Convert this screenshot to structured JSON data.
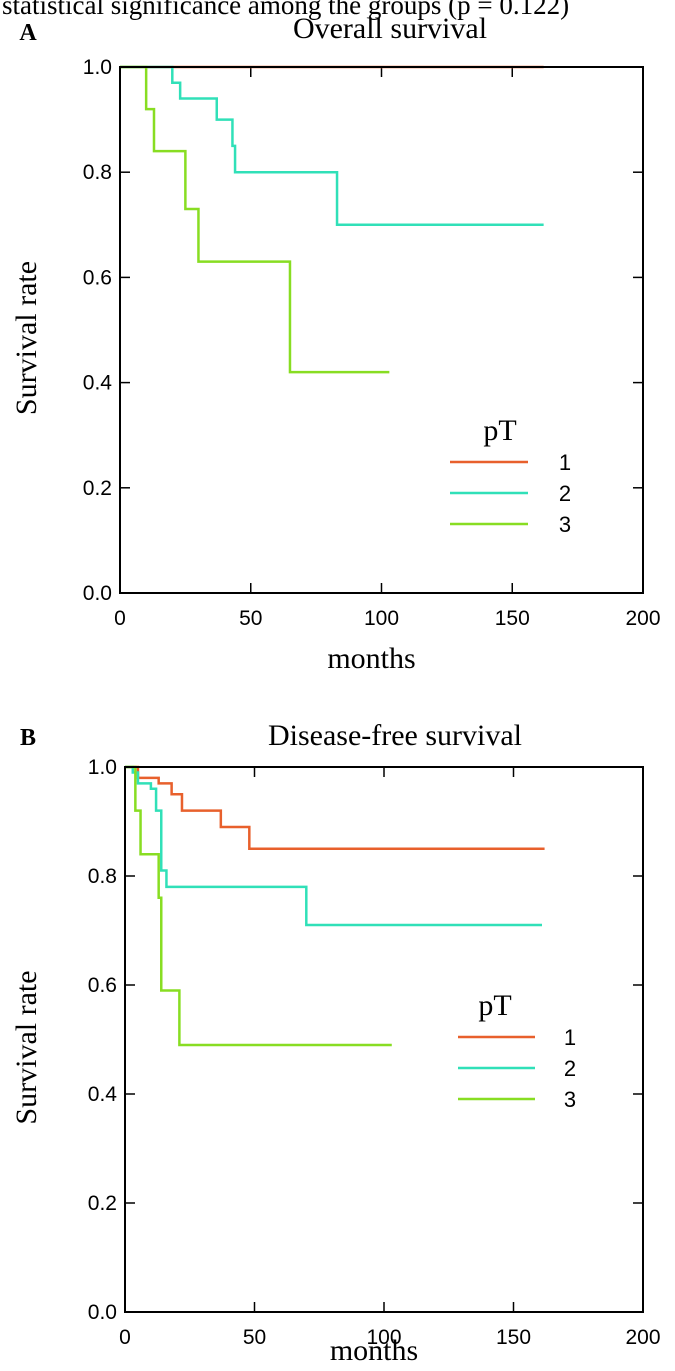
{
  "caption_top": "statistical significance among the groups (p = 0.122)",
  "chart_data": [
    {
      "type": "line",
      "panel_label": "A",
      "title": "Overall survival",
      "xlabel": "months",
      "ylabel": "Survival rate",
      "xlim": [
        0,
        200
      ],
      "ylim": [
        0,
        1
      ],
      "xticks": [
        "0",
        "50",
        "100",
        "150",
        "200"
      ],
      "yticks": [
        "0.0",
        "0.2",
        "0.4",
        "0.6",
        "0.8",
        "1.0"
      ],
      "legend_title": "pT",
      "legend_position": "bottom-right",
      "series": [
        {
          "name": "1",
          "color": "#e8602c",
          "x": [
            0,
            162
          ],
          "y": [
            1.0,
            1.0
          ]
        },
        {
          "name": "2",
          "color": "#30e0b8",
          "x": [
            0,
            20,
            23,
            27,
            37,
            42,
            43,
            44,
            83,
            162
          ],
          "y": [
            1.0,
            0.97,
            0.94,
            0.94,
            0.9,
            0.9,
            0.85,
            0.8,
            0.7,
            0.7
          ]
        },
        {
          "name": "3",
          "color": "#88dd22",
          "x": [
            0,
            10,
            13,
            25,
            30,
            65,
            103
          ],
          "y": [
            1.0,
            0.92,
            0.84,
            0.73,
            0.63,
            0.42,
            0.42
          ]
        }
      ]
    },
    {
      "type": "line",
      "panel_label": "B",
      "title": "Disease-free survival",
      "xlabel": "months",
      "ylabel": "Survival rate",
      "xlim": [
        0,
        200
      ],
      "ylim": [
        0,
        1
      ],
      "xticks": [
        "0",
        "50",
        "100",
        "150",
        "200"
      ],
      "yticks": [
        "0.0",
        "0.2",
        "0.4",
        "0.6",
        "0.8",
        "1.0"
      ],
      "legend_title": "pT",
      "legend_position": "bottom-right",
      "series": [
        {
          "name": "1",
          "color": "#e8602c",
          "x": [
            0,
            5,
            13,
            18,
            22,
            37,
            42,
            48,
            162
          ],
          "y": [
            1.0,
            0.98,
            0.97,
            0.95,
            0.92,
            0.89,
            0.89,
            0.85,
            0.85
          ]
        },
        {
          "name": "2",
          "color": "#30e0b8",
          "x": [
            0,
            3,
            5,
            10,
            12,
            14,
            16,
            70,
            161
          ],
          "y": [
            1.0,
            0.99,
            0.97,
            0.96,
            0.92,
            0.81,
            0.78,
            0.71,
            0.71
          ]
        },
        {
          "name": "3",
          "color": "#88dd22",
          "x": [
            0,
            4,
            6,
            13,
            14,
            21,
            103
          ],
          "y": [
            1.0,
            0.92,
            0.84,
            0.76,
            0.59,
            0.49,
            0.49
          ]
        }
      ]
    }
  ]
}
